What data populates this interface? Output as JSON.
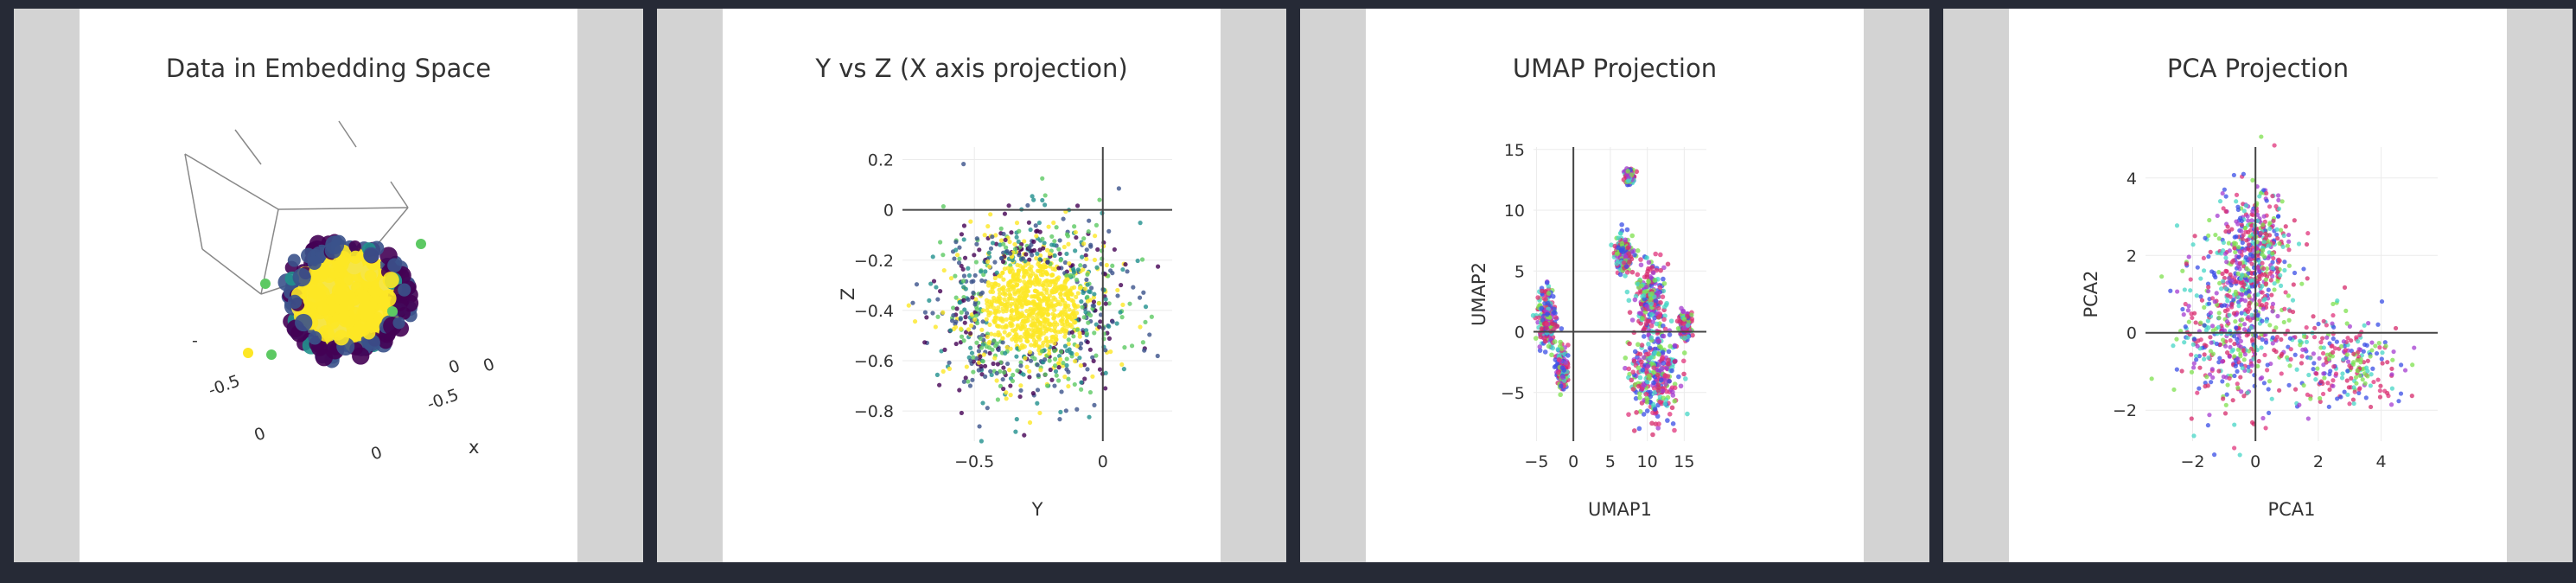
{
  "chart_data": [
    {
      "type": "scatter3d",
      "title": "Data in Embedding Space",
      "axes": {
        "labels": [
          "x"
        ],
        "ticks": [
          "-0.5",
          "0",
          "0",
          "-0.5",
          "0",
          "0"
        ]
      },
      "colorscale": "viridis",
      "cloud": {
        "cx": 0,
        "cy": 0,
        "spread": 0.3
      },
      "grid": true,
      "legend": "none"
    },
    {
      "type": "scatter",
      "title": "Y vs Z (X axis projection)",
      "xlabel": "Y",
      "ylabel": "Z",
      "xlim": [
        -0.78,
        0.27
      ],
      "ylim": [
        -0.92,
        0.25
      ],
      "xticks": [
        -0.5,
        0
      ],
      "xtick_labels": [
        "−0.5",
        "0"
      ],
      "yticks": [
        0.2,
        0,
        -0.2,
        -0.4,
        -0.6,
        -0.8
      ],
      "ytick_labels": [
        "0.2",
        "0",
        "−0.2",
        "−0.4",
        "−0.6",
        "−0.8"
      ],
      "colorscale": "viridis",
      "cloud": {
        "cx": -0.28,
        "cy": -0.38,
        "sx": 0.17,
        "sy": 0.16
      },
      "grid": true,
      "legend": "none"
    },
    {
      "type": "scatter",
      "title": "UMAP Projection",
      "xlabel": "UMAP1",
      "ylabel": "UMAP2",
      "xlim": [
        -5.4,
        18
      ],
      "ylim": [
        -9,
        15.2
      ],
      "xticks": [
        -5,
        0,
        5,
        10,
        15
      ],
      "xtick_labels": [
        "−5",
        "0",
        "5",
        "10",
        "15"
      ],
      "yticks": [
        15,
        10,
        5,
        0,
        -5
      ],
      "ytick_labels": [
        "15",
        "10",
        "5",
        "0",
        "−5"
      ],
      "colors": [
        "#d62a6b",
        "#a43cd0",
        "#3a4de6",
        "#e0347c",
        "#7de04e",
        "#45d6c5"
      ],
      "clusters": [
        {
          "cx": -3.6,
          "cy": 1.0,
          "sx": 0.6,
          "sy": 1.3
        },
        {
          "cx": 7.6,
          "cy": 12.8,
          "sx": 0.25,
          "sy": 0.3
        },
        {
          "cx": 6.8,
          "cy": 6.5,
          "sx": 0.6,
          "sy": 0.7
        },
        {
          "cx": 10.3,
          "cy": 2.8,
          "sx": 1.0,
          "sy": 1.3
        },
        {
          "cx": 11.0,
          "cy": -3.5,
          "sx": 1.6,
          "sy": 1.8
        },
        {
          "cx": -1.5,
          "cy": -3.0,
          "sx": 0.4,
          "sy": 0.8
        },
        {
          "cx": 15.2,
          "cy": 0.5,
          "sx": 0.4,
          "sy": 0.5
        }
      ],
      "grid": true,
      "legend": "none"
    },
    {
      "type": "scatter",
      "title": "PCA Projection",
      "xlabel": "PCA1",
      "ylabel": "PCA2",
      "xlim": [
        -3.5,
        5.8
      ],
      "ylim": [
        -2.8,
        4.8
      ],
      "xticks": [
        -2,
        0,
        2,
        4
      ],
      "xtick_labels": [
        "−2",
        "0",
        "2",
        "4"
      ],
      "yticks": [
        4,
        2,
        0,
        -2
      ],
      "ytick_labels": [
        "4",
        "2",
        "0",
        "−2"
      ],
      "colors": [
        "#d62a6b",
        "#a43cd0",
        "#3a4de6",
        "#e0347c",
        "#7de04e",
        "#45d6c5"
      ],
      "clusters": [
        {
          "cx": -0.6,
          "cy": 0.2,
          "sx": 0.9,
          "sy": 1.2
        },
        {
          "cx": 0.0,
          "cy": 2.2,
          "sx": 0.5,
          "sy": 0.8
        },
        {
          "cx": 2.9,
          "cy": -0.8,
          "sx": 0.9,
          "sy": 0.6
        }
      ],
      "grid": true,
      "legend": "none"
    }
  ]
}
